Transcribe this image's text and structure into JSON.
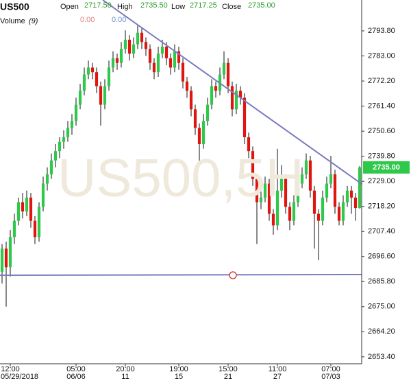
{
  "chart_data": {
    "type": "candlestick",
    "symbol": "US500",
    "watermark": "US500,5H",
    "header": {
      "open_label": "Open",
      "open": "2717.50",
      "high_label": "High",
      "high": "2735.50",
      "low_label": "Low",
      "low": "2717.25",
      "close_label": "Close",
      "close": "2735.00",
      "volume_label": "Volume",
      "volume_period": "(9)",
      "volume_a": "0.00",
      "volume_b": "0.00"
    },
    "price_tag": "2735.00",
    "up_color": "#2ec84a",
    "down_color": "#e0150f",
    "ylim": [
      2650.4,
      2807.1
    ],
    "yticks": [
      {
        "value": 2793.8,
        "label": "2793.80"
      },
      {
        "value": 2783,
        "label": "2783.00"
      },
      {
        "value": 2772.2,
        "label": "2772.20"
      },
      {
        "value": 2761.4,
        "label": "2761.40"
      },
      {
        "value": 2750.6,
        "label": "2750.60"
      },
      {
        "value": 2739.8,
        "label": "2739.80"
      },
      {
        "value": 2729,
        "label": "2729.00"
      },
      {
        "value": 2718.2,
        "label": "2718.20"
      },
      {
        "value": 2707.4,
        "label": "2707.40"
      },
      {
        "value": 2696.6,
        "label": "2696.60"
      },
      {
        "value": 2685.8,
        "label": "2685.80"
      },
      {
        "value": 2675,
        "label": "2675.00"
      },
      {
        "value": 2664.2,
        "label": "2664.20"
      },
      {
        "value": 2653.4,
        "label": "2653.40"
      }
    ],
    "times": [
      null,
      null,
      "12:00",
      null,
      null,
      null,
      null,
      null,
      null,
      null,
      null,
      null,
      null,
      null,
      null,
      null,
      null,
      null,
      "05:00",
      null,
      null,
      null,
      null,
      null,
      null,
      null,
      null,
      null,
      null,
      null,
      "20:00",
      null,
      null,
      null,
      null,
      null,
      null,
      null,
      null,
      null,
      null,
      null,
      null,
      "19:00",
      null,
      null,
      null,
      null,
      null,
      null,
      null,
      null,
      null,
      null,
      null,
      "15:00",
      null,
      null,
      null,
      null,
      null,
      null,
      null,
      null,
      null,
      null,
      null,
      "11:00",
      null,
      null,
      null,
      null,
      null,
      null,
      null,
      null,
      null,
      null,
      null,
      null,
      "07:00",
      null,
      null,
      null,
      null,
      null,
      null,
      null
    ],
    "dates": [
      null,
      null,
      "05/29/2018",
      null,
      null,
      null,
      null,
      null,
      null,
      null,
      null,
      null,
      null,
      null,
      null,
      null,
      null,
      null,
      "06/06",
      null,
      null,
      null,
      null,
      null,
      null,
      null,
      null,
      null,
      null,
      null,
      "11",
      null,
      null,
      null,
      null,
      null,
      null,
      null,
      null,
      null,
      null,
      null,
      null,
      "15",
      null,
      null,
      null,
      null,
      null,
      null,
      null,
      null,
      null,
      null,
      null,
      "21",
      null,
      null,
      null,
      null,
      null,
      null,
      null,
      null,
      null,
      null,
      null,
      "27",
      null,
      null,
      null,
      null,
      null,
      null,
      null,
      null,
      null,
      null,
      null,
      null,
      "07/03",
      null,
      null,
      null,
      null,
      null,
      null,
      null
    ],
    "candles": [
      [
        2690,
        2702,
        2685,
        2700
      ],
      [
        2700,
        2703,
        2675,
        2692
      ],
      [
        2692,
        2708,
        2688,
        2705
      ],
      [
        2705,
        2715,
        2702,
        2712
      ],
      [
        2712,
        2722,
        2710,
        2720
      ],
      [
        2720,
        2724,
        2713,
        2716
      ],
      [
        2716,
        2725,
        2714,
        2722
      ],
      [
        2722,
        2724,
        2709,
        2712
      ],
      [
        2712,
        2714,
        2702,
        2705
      ],
      [
        2705,
        2720,
        2703,
        2718
      ],
      [
        2718,
        2731,
        2716,
        2728
      ],
      [
        2728,
        2735,
        2725,
        2732
      ],
      [
        2732,
        2741,
        2730,
        2738
      ],
      [
        2738,
        2745,
        2735,
        2742
      ],
      [
        2742,
        2748,
        2739,
        2746
      ],
      [
        2746,
        2751,
        2743,
        2748
      ],
      [
        2748,
        2755,
        2746,
        2752
      ],
      [
        2752,
        2758,
        2749,
        2755
      ],
      [
        2755,
        2765,
        2753,
        2762
      ],
      [
        2762,
        2771,
        2760,
        2768
      ],
      [
        2768,
        2778,
        2766,
        2775
      ],
      [
        2775,
        2781,
        2773,
        2778
      ],
      [
        2778,
        2780,
        2773,
        2776
      ],
      [
        2776,
        2778,
        2767,
        2770
      ],
      [
        2770,
        2772,
        2753,
        2762
      ],
      [
        2762,
        2773,
        2760,
        2770
      ],
      [
        2770,
        2781,
        2768,
        2778
      ],
      [
        2778,
        2785,
        2776,
        2782
      ],
      [
        2782,
        2784,
        2777,
        2780
      ],
      [
        2780,
        2789,
        2778,
        2786
      ],
      [
        2786,
        2794,
        2784,
        2790
      ],
      [
        2790,
        2792,
        2781,
        2784
      ],
      [
        2784,
        2791,
        2782,
        2788
      ],
      [
        2788,
        2796,
        2786,
        2793
      ],
      [
        2793,
        2795,
        2786,
        2789
      ],
      [
        2789,
        2791,
        2783,
        2786
      ],
      [
        2786,
        2788,
        2777,
        2780
      ],
      [
        2780,
        2782,
        2773,
        2776
      ],
      [
        2776,
        2787,
        2774,
        2784
      ],
      [
        2784,
        2790,
        2782,
        2787
      ],
      [
        2787,
        2789,
        2779,
        2782
      ],
      [
        2782,
        2784,
        2775,
        2778
      ],
      [
        2778,
        2788,
        2776,
        2785
      ],
      [
        2785,
        2787,
        2777,
        2780
      ],
      [
        2780,
        2782,
        2769,
        2772
      ],
      [
        2772,
        2774,
        2765,
        2768
      ],
      [
        2768,
        2770,
        2757,
        2760
      ],
      [
        2760,
        2762,
        2749,
        2752
      ],
      [
        2752,
        2754,
        2737,
        2745
      ],
      [
        2745,
        2758,
        2743,
        2755
      ],
      [
        2755,
        2765,
        2753,
        2762
      ],
      [
        2762,
        2773,
        2760,
        2770
      ],
      [
        2770,
        2772,
        2765,
        2768
      ],
      [
        2768,
        2778,
        2766,
        2775
      ],
      [
        2775,
        2785,
        2773,
        2780
      ],
      [
        2780,
        2782,
        2767,
        2770
      ],
      [
        2770,
        2772,
        2757,
        2760
      ],
      [
        2760,
        2771,
        2758,
        2768
      ],
      [
        2768,
        2770,
        2762,
        2765
      ],
      [
        2765,
        2767,
        2745,
        2748
      ],
      [
        2748,
        2750,
        2739,
        2742
      ],
      [
        2742,
        2744,
        2727,
        2730
      ],
      [
        2730,
        2732,
        2702,
        2720
      ],
      [
        2720,
        2725,
        2717,
        2722
      ],
      [
        2722,
        2731,
        2720,
        2728
      ],
      [
        2728,
        2730,
        2712,
        2715
      ],
      [
        2715,
        2717,
        2706,
        2710
      ],
      [
        2710,
        2743,
        2708,
        2725
      ],
      [
        2725,
        2736,
        2722,
        2730
      ],
      [
        2730,
        2732,
        2715,
        2718
      ],
      [
        2718,
        2720,
        2708,
        2712
      ],
      [
        2712,
        2723,
        2710,
        2720
      ],
      [
        2720,
        2731,
        2718,
        2728
      ],
      [
        2728,
        2735,
        2726,
        2732
      ],
      [
        2732,
        2741,
        2730,
        2738
      ],
      [
        2738,
        2740,
        2722,
        2725
      ],
      [
        2725,
        2727,
        2700,
        2715
      ],
      [
        2715,
        2717,
        2695,
        2712
      ],
      [
        2712,
        2725,
        2710,
        2722
      ],
      [
        2722,
        2731,
        2720,
        2728
      ],
      [
        2728,
        2740,
        2726,
        2732
      ],
      [
        2732,
        2734,
        2715,
        2718
      ],
      [
        2718,
        2720,
        2710,
        2712
      ],
      [
        2712,
        2723,
        2710,
        2720
      ],
      [
        2720,
        2727,
        2718,
        2725
      ],
      [
        2725,
        2727,
        2715,
        2722
      ],
      [
        2722,
        2724,
        2712,
        2717.5
      ],
      [
        2717.5,
        2735.5,
        2717.25,
        2735
      ]
    ]
  }
}
